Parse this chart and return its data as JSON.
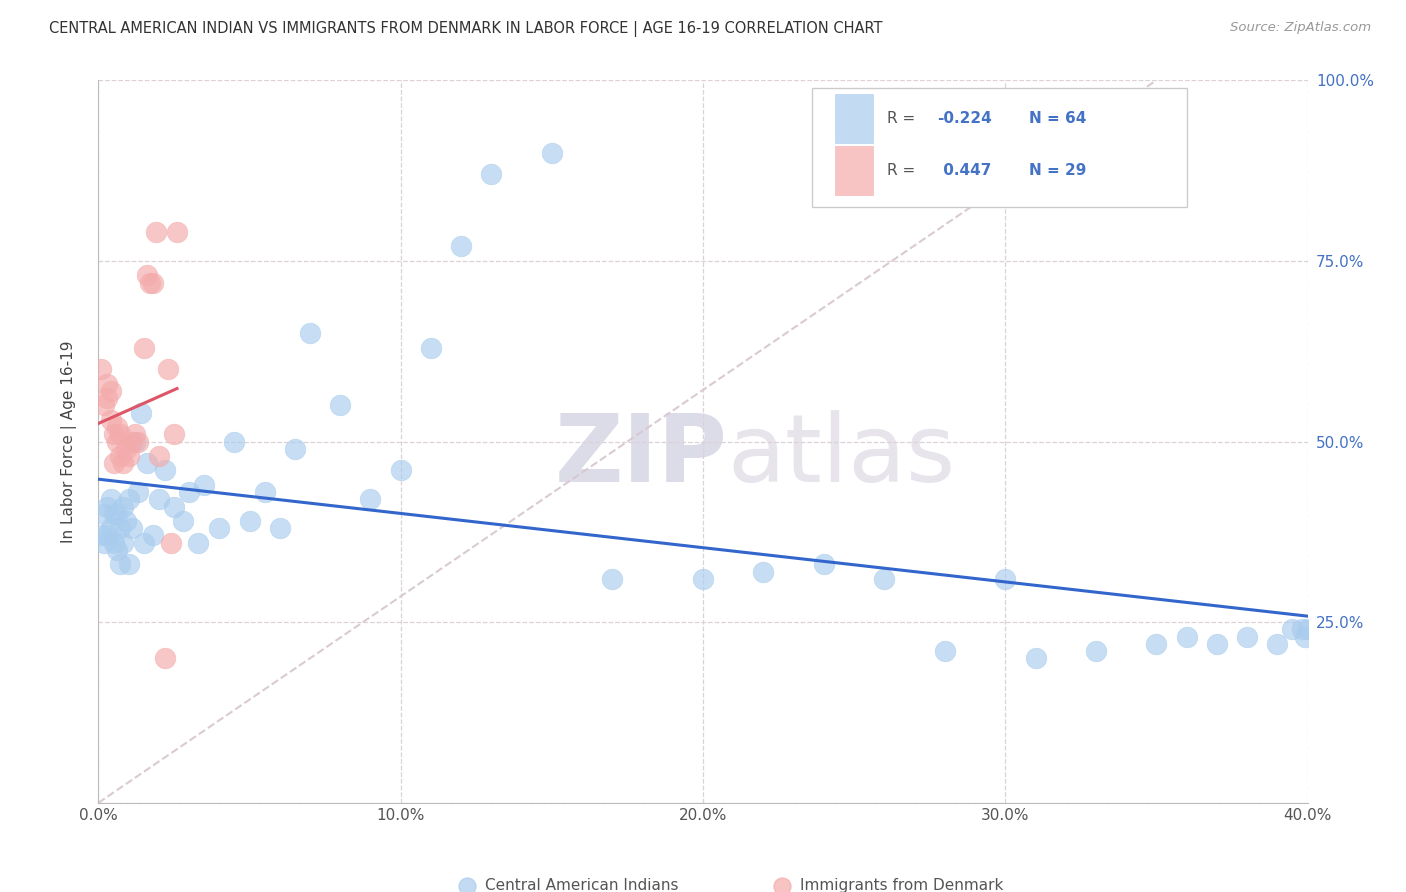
{
  "title": "CENTRAL AMERICAN INDIAN VS IMMIGRANTS FROM DENMARK IN LABOR FORCE | AGE 16-19 CORRELATION CHART",
  "source": "Source: ZipAtlas.com",
  "ylabel": "In Labor Force | Age 16-19",
  "xlim": [
    0.0,
    0.4
  ],
  "ylim": [
    0.0,
    1.0
  ],
  "blue_R": -0.224,
  "blue_N": 64,
  "pink_R": 0.447,
  "pink_N": 29,
  "blue_color": "#A8CCEE",
  "pink_color": "#F4AAAA",
  "blue_line_color": "#3366CC",
  "pink_line_color": "#DD5566",
  "ref_line_color": "#D8C8D0",
  "watermark_zip": "ZIP",
  "watermark_atlas": "atlas",
  "blue_x": [
    0.001,
    0.002,
    0.002,
    0.003,
    0.003,
    0.004,
    0.004,
    0.005,
    0.005,
    0.006,
    0.006,
    0.007,
    0.007,
    0.008,
    0.008,
    0.009,
    0.01,
    0.01,
    0.011,
    0.012,
    0.013,
    0.014,
    0.015,
    0.016,
    0.018,
    0.02,
    0.022,
    0.025,
    0.028,
    0.03,
    0.033,
    0.035,
    0.04,
    0.045,
    0.05,
    0.055,
    0.06,
    0.065,
    0.07,
    0.08,
    0.09,
    0.1,
    0.11,
    0.12,
    0.13,
    0.15,
    0.17,
    0.2,
    0.22,
    0.24,
    0.26,
    0.28,
    0.3,
    0.31,
    0.33,
    0.35,
    0.36,
    0.37,
    0.38,
    0.39,
    0.395,
    0.398,
    0.399,
    0.4
  ],
  "blue_y": [
    0.37,
    0.36,
    0.4,
    0.37,
    0.41,
    0.38,
    0.42,
    0.36,
    0.4,
    0.35,
    0.4,
    0.33,
    0.38,
    0.36,
    0.41,
    0.39,
    0.33,
    0.42,
    0.38,
    0.5,
    0.43,
    0.54,
    0.36,
    0.47,
    0.37,
    0.42,
    0.46,
    0.41,
    0.39,
    0.43,
    0.36,
    0.44,
    0.38,
    0.5,
    0.39,
    0.43,
    0.38,
    0.49,
    0.65,
    0.55,
    0.42,
    0.46,
    0.63,
    0.77,
    0.87,
    0.9,
    0.31,
    0.31,
    0.32,
    0.33,
    0.31,
    0.21,
    0.31,
    0.2,
    0.21,
    0.22,
    0.23,
    0.22,
    0.23,
    0.22,
    0.24,
    0.24,
    0.23,
    0.24
  ],
  "pink_x": [
    0.001,
    0.002,
    0.003,
    0.003,
    0.004,
    0.004,
    0.005,
    0.005,
    0.006,
    0.006,
    0.007,
    0.007,
    0.008,
    0.009,
    0.01,
    0.011,
    0.012,
    0.013,
    0.015,
    0.016,
    0.017,
    0.018,
    0.019,
    0.02,
    0.022,
    0.023,
    0.024,
    0.025,
    0.026
  ],
  "pink_y": [
    0.6,
    0.55,
    0.56,
    0.58,
    0.53,
    0.57,
    0.47,
    0.51,
    0.5,
    0.52,
    0.48,
    0.51,
    0.47,
    0.49,
    0.48,
    0.5,
    0.51,
    0.5,
    0.63,
    0.73,
    0.72,
    0.72,
    0.79,
    0.48,
    0.2,
    0.6,
    0.36,
    0.51,
    0.79
  ]
}
